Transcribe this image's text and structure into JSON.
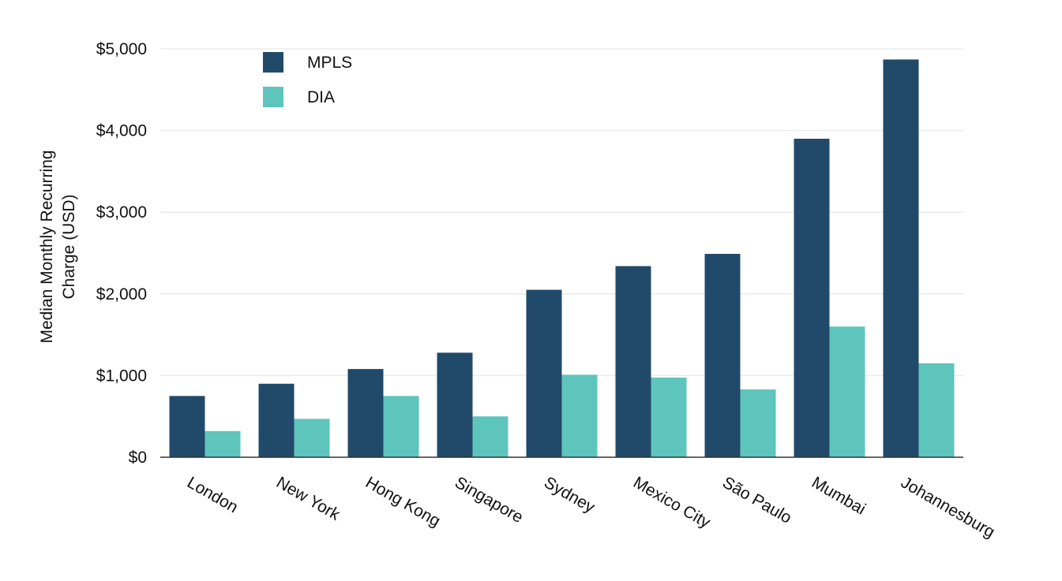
{
  "chart_data": {
    "type": "bar",
    "title": "",
    "xlabel": "",
    "ylabel": "Median Monthly Recurring Charge (USD)",
    "ylabel_lines": [
      "Median Monthly Recurring",
      "Charge (USD)"
    ],
    "ylim": [
      0,
      5000
    ],
    "yticks": [
      0,
      1000,
      2000,
      3000,
      4000,
      5000
    ],
    "ytick_labels": [
      "$0",
      "$1,000",
      "$2,000",
      "$3,000",
      "$4,000",
      "$5,000"
    ],
    "grid": true,
    "legend_position": "top-left",
    "categories": [
      "London",
      "New York",
      "Hong Kong",
      "Singapore",
      "Sydney",
      "Mexico City",
      "São Paulo",
      "Mumbai",
      "Johannesburg"
    ],
    "series": [
      {
        "name": "MPLS",
        "color": "#214a6a",
        "values": [
          750,
          900,
          1080,
          1280,
          2050,
          2340,
          2490,
          3900,
          4870
        ]
      },
      {
        "name": "DIA",
        "color": "#5ec5bd",
        "values": [
          320,
          470,
          750,
          500,
          1010,
          975,
          830,
          1600,
          1150
        ]
      }
    ]
  }
}
